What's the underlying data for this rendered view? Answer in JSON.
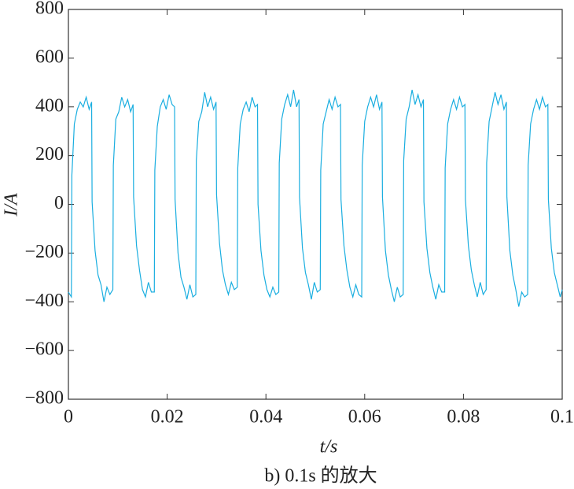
{
  "chart_data": {
    "type": "line",
    "x_label": "t/s",
    "y_label": "I/A",
    "caption": "b) 0.1s 的放大",
    "color": "#1aaee0",
    "xlim": [
      0,
      0.1
    ],
    "xticks": [
      0,
      0.02,
      0.04,
      0.06,
      0.08,
      0.1
    ],
    "ylim": [
      -800,
      800
    ],
    "yticks": [
      {
        "value": -800,
        "label": "−800"
      },
      {
        "value": -600,
        "label": "−600"
      },
      {
        "value": -400,
        "label": "−400"
      },
      {
        "value": -200,
        "label": "−200"
      },
      0,
      200,
      400,
      600,
      800
    ],
    "x": [
      0,
      0.0006,
      0.0007,
      0.0012,
      0.0018,
      0.0024,
      0.003,
      0.0036,
      0.0042,
      0.0047,
      0.0048,
      0.0054,
      0.006,
      0.0066,
      0.0072,
      0.0078,
      0.0084,
      0.009,
      0.0091,
      0.0096,
      0.0102,
      0.0108,
      0.0114,
      0.012,
      0.0126,
      0.0131,
      0.0132,
      0.0138,
      0.0144,
      0.015,
      0.0156,
      0.0162,
      0.0168,
      0.0174,
      0.0175,
      0.018,
      0.0186,
      0.0192,
      0.0198,
      0.0204,
      0.021,
      0.0215,
      0.0216,
      0.0222,
      0.0228,
      0.0234,
      0.024,
      0.0246,
      0.0252,
      0.0258,
      0.0259,
      0.0264,
      0.027,
      0.0276,
      0.0282,
      0.0288,
      0.0294,
      0.0299,
      0.03,
      0.0306,
      0.0312,
      0.0318,
      0.0324,
      0.033,
      0.0336,
      0.0342,
      0.0343,
      0.0348,
      0.0354,
      0.036,
      0.0366,
      0.0372,
      0.0378,
      0.0383,
      0.0384,
      0.039,
      0.0396,
      0.0402,
      0.0408,
      0.0414,
      0.042,
      0.0426,
      0.0427,
      0.0432,
      0.0438,
      0.0444,
      0.045,
      0.0456,
      0.0462,
      0.0467,
      0.0468,
      0.0474,
      0.048,
      0.0486,
      0.0492,
      0.0498,
      0.0504,
      0.051,
      0.0511,
      0.0516,
      0.0522,
      0.0528,
      0.0534,
      0.054,
      0.0546,
      0.0551,
      0.0552,
      0.0558,
      0.0564,
      0.057,
      0.0576,
      0.0582,
      0.0588,
      0.0594,
      0.0595,
      0.06,
      0.0606,
      0.0612,
      0.0618,
      0.0624,
      0.063,
      0.0635,
      0.0636,
      0.0642,
      0.0648,
      0.0654,
      0.066,
      0.0666,
      0.0672,
      0.0678,
      0.0679,
      0.0684,
      0.069,
      0.0696,
      0.0702,
      0.0708,
      0.0714,
      0.0719,
      0.072,
      0.0726,
      0.0732,
      0.0738,
      0.0744,
      0.075,
      0.0756,
      0.0762,
      0.0763,
      0.0768,
      0.0774,
      0.078,
      0.0786,
      0.0792,
      0.0798,
      0.0803,
      0.0804,
      0.081,
      0.0816,
      0.0822,
      0.0828,
      0.0834,
      0.084,
      0.0846,
      0.0847,
      0.0852,
      0.0858,
      0.0864,
      0.087,
      0.0876,
      0.0882,
      0.0887,
      0.0888,
      0.0894,
      0.09,
      0.0906,
      0.0912,
      0.0918,
      0.0924,
      0.093,
      0.0931,
      0.0936,
      0.0942,
      0.0948,
      0.0954,
      0.096,
      0.0966,
      0.0971,
      0.0972,
      0.0978,
      0.0984,
      0.099,
      0.0996,
      0.1
    ],
    "values": [
      -360,
      -380,
      120,
      330,
      390,
      420,
      400,
      440,
      390,
      420,
      10,
      -190,
      -290,
      -330,
      -400,
      -340,
      -370,
      -350,
      160,
      350,
      380,
      440,
      400,
      430,
      380,
      410,
      30,
      -170,
      -270,
      -350,
      -380,
      -320,
      -360,
      -360,
      140,
      320,
      400,
      430,
      390,
      450,
      410,
      400,
      20,
      -200,
      -300,
      -340,
      -390,
      -330,
      -380,
      -370,
      180,
      340,
      380,
      460,
      400,
      440,
      390,
      420,
      40,
      -160,
      -270,
      -330,
      -370,
      -320,
      -350,
      -340,
      150,
      330,
      390,
      420,
      380,
      440,
      400,
      410,
      0,
      -190,
      -290,
      -350,
      -380,
      -340,
      -370,
      -360,
      170,
      350,
      410,
      450,
      400,
      470,
      400,
      430,
      30,
      -180,
      -280,
      -330,
      -390,
      -320,
      -360,
      -350,
      140,
      330,
      380,
      430,
      390,
      440,
      400,
      410,
      20,
      -170,
      -270,
      -340,
      -380,
      -330,
      -370,
      -380,
      160,
      340,
      400,
      440,
      400,
      450,
      390,
      420,
      30,
      -190,
      -290,
      -350,
      -400,
      -340,
      -380,
      -370,
      180,
      350,
      400,
      470,
      410,
      450,
      400,
      430,
      10,
      -180,
      -280,
      -340,
      -390,
      -330,
      -360,
      -360,
      150,
      330,
      390,
      430,
      390,
      440,
      400,
      410,
      20,
      -170,
      -270,
      -330,
      -380,
      -320,
      -370,
      -350,
      170,
      340,
      400,
      460,
      410,
      450,
      390,
      420,
      30,
      -190,
      -290,
      -350,
      -420,
      -360,
      -380,
      -370,
      160,
      330,
      390,
      430,
      390,
      440,
      400,
      410,
      20,
      -180,
      -280,
      -330,
      -380,
      -350
    ]
  }
}
